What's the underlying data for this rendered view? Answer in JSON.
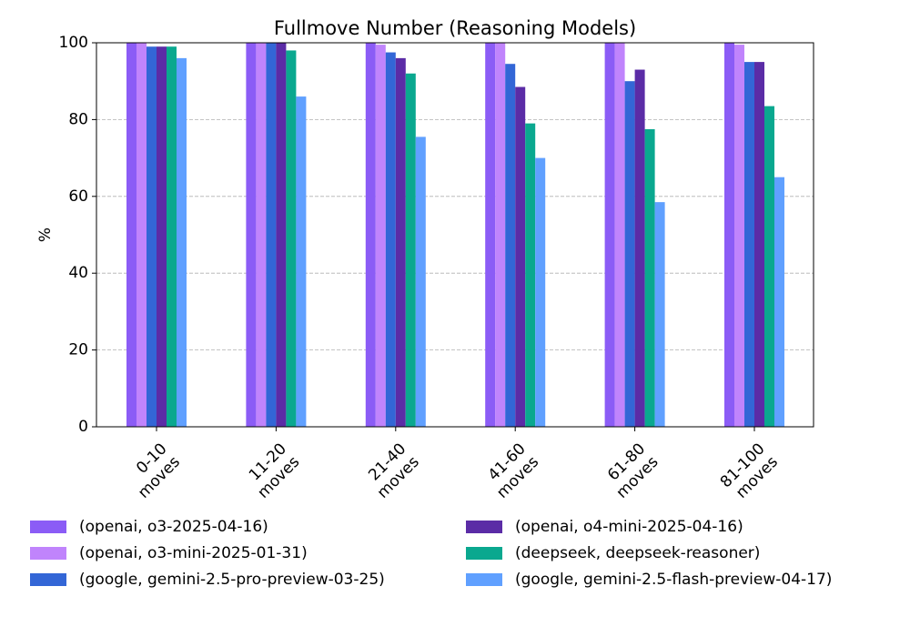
{
  "chart_data": {
    "type": "bar",
    "title": "Fullmove Number (Reasoning Models)",
    "xlabel": "",
    "ylabel": "%",
    "ylim": [
      0,
      100
    ],
    "yticks": [
      0,
      20,
      40,
      60,
      80,
      100
    ],
    "grid": "y-dashed",
    "legend_position": "bottom",
    "categories": [
      "0-10\nmoves",
      "11-20\nmoves",
      "21-40\nmoves",
      "41-60\nmoves",
      "61-80\nmoves",
      "81-100\nmoves"
    ],
    "series": [
      {
        "name": "(openai, o3-2025-04-16)",
        "color": "#8b5cf6",
        "values": [
          100,
          100,
          100,
          100,
          100,
          100
        ]
      },
      {
        "name": "(openai, o3-mini-2025-01-31)",
        "color": "#c084fc",
        "values": [
          100,
          100,
          99.5,
          100,
          100,
          99.5
        ]
      },
      {
        "name": "(google, gemini-2.5-pro-preview-03-25)",
        "color": "#3366d6",
        "values": [
          99,
          100,
          97.5,
          94.5,
          90,
          95
        ]
      },
      {
        "name": "(openai, o4-mini-2025-04-16)",
        "color": "#5b2ca6",
        "values": [
          99,
          100,
          96,
          88.5,
          93,
          95
        ]
      },
      {
        "name": "(deepseek, deepseek-reasoner)",
        "color": "#0aa88f",
        "values": [
          99,
          98,
          92,
          79,
          77.5,
          83.5
        ]
      },
      {
        "name": "(google, gemini-2.5-flash-preview-04-17)",
        "color": "#60a0ff",
        "values": [
          96,
          86,
          75.5,
          70,
          58.5,
          65
        ]
      }
    ]
  }
}
